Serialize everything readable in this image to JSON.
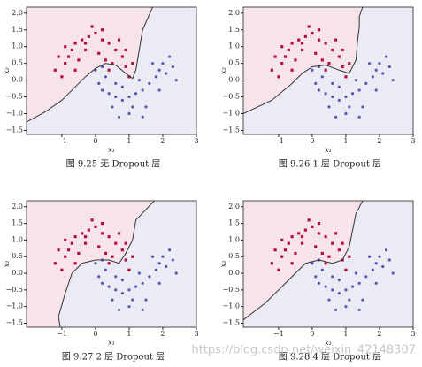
{
  "chart_data": [
    {
      "type": "scatter",
      "caption": "图 9.25 无 Dropout 层",
      "xlabel": "x₁",
      "ylabel": "x₂",
      "xlim": [
        -2.05,
        3
      ],
      "ylim": [
        -1.62,
        2.18
      ],
      "xticks": [
        {
          "value": -1,
          "label": "−1"
        },
        0,
        1,
        2,
        3
      ],
      "yticks": [
        {
          "value": -1.5,
          "label": "−1.5"
        },
        {
          "value": -1,
          "label": "−1.0"
        },
        {
          "value": -0.5,
          "label": "−0.5"
        },
        {
          "value": 0,
          "label": "0.0"
        },
        {
          "value": 0.5,
          "label": "0.5"
        },
        {
          "value": 1,
          "label": "1.0"
        },
        {
          "value": 1.5,
          "label": "1.5"
        },
        {
          "value": 2,
          "label": "2.0"
        }
      ],
      "region_colors": [
        "#f7e4ea",
        "#ebebf5"
      ],
      "boundary": {
        "color": "#333333",
        "x": [
          -2.05,
          -1.5,
          -1.0,
          -0.6,
          -0.3,
          0,
          0.3,
          0.6,
          0.9,
          1.1,
          1.2,
          1.3,
          1.4,
          1.7
        ],
        "values": [
          -1.25,
          -0.95,
          -0.6,
          -0.2,
          0.1,
          0.35,
          0.5,
          0.45,
          0.2,
          0.05,
          0.3,
          0.9,
          1.5,
          2.18
        ]
      },
      "series": [
        {
          "color": "#b0103a",
          "marker": "square",
          "x": [
            -1.0,
            -0.9,
            -0.8,
            -0.7,
            -0.6,
            -0.4,
            -0.2,
            0,
            0.2,
            0.4,
            0.6,
            0.8,
            0.9,
            1.0,
            -1.2,
            -0.5,
            -0.3,
            0.1,
            0.3,
            0.5,
            -0.1,
            -0.9,
            0.7,
            1.1,
            -0.6,
            0.2,
            -1.1,
            0.4,
            -0.3,
            0.9
          ],
          "values": [
            0.1,
            0.5,
            0.7,
            0.9,
            1.1,
            1.2,
            1.3,
            1.4,
            1.2,
            1.1,
            0.9,
            0.7,
            0.4,
            0.1,
            0.3,
            0.6,
            0.9,
            0.8,
            0.6,
            0.5,
            1.6,
            1.0,
            1.2,
            0.5,
            0.3,
            1.5,
            0.7,
            0.3,
            1.1,
            0.9
          ]
        },
        {
          "color": "#5b56b0",
          "marker": "circle",
          "x": [
            0,
            0.1,
            0.2,
            0.4,
            0.6,
            0.8,
            1.0,
            1.2,
            1.4,
            1.6,
            1.8,
            1.9,
            2.0,
            2.1,
            2.3,
            1.5,
            1.0,
            0.5,
            0.3,
            0.8,
            1.3,
            1.7,
            2.2,
            1.1,
            0.7,
            2.4,
            0.2,
            1.9,
            1.4,
            0.6
          ],
          "values": [
            0.3,
            -0.1,
            -0.3,
            -0.4,
            -0.5,
            -0.6,
            -0.5,
            -0.4,
            -0.3,
            -0.1,
            0.1,
            0.3,
            0.5,
            0.2,
            0.4,
            -0.8,
            -1.0,
            -0.8,
            0.1,
            -0.2,
            0,
            0.5,
            0.7,
            -0.8,
            -1.1,
            0,
            0.4,
            -0.3,
            -1.1,
            -0.1
          ]
        }
      ]
    },
    {
      "type": "scatter",
      "caption": "图 9.26 1 层 Dropout 层",
      "xlabel": "x₁",
      "ylabel": "x₂",
      "xlim": [
        -2.05,
        3
      ],
      "ylim": [
        -1.62,
        2.18
      ],
      "xticks": [
        {
          "value": -1,
          "label": "−1"
        },
        0,
        1,
        2,
        3
      ],
      "yticks": [
        {
          "value": -1.5,
          "label": "−1.5"
        },
        {
          "value": -1,
          "label": "−1.0"
        },
        {
          "value": -0.5,
          "label": "−0.5"
        },
        {
          "value": 0,
          "label": "0.0"
        },
        {
          "value": 0.5,
          "label": "0.5"
        },
        {
          "value": 1,
          "label": "1.0"
        },
        {
          "value": 1.5,
          "label": "1.5"
        },
        {
          "value": 2,
          "label": "2.0"
        }
      ],
      "region_colors": [
        "#f7e4ea",
        "#ebebf5"
      ],
      "boundary": {
        "color": "#333333",
        "x": [
          -2.05,
          -1.2,
          -0.6,
          -0.3,
          0,
          0.4,
          0.8,
          1.1,
          1.3,
          1.35,
          1.4,
          1.4,
          1.5
        ],
        "values": [
          -1.0,
          -0.6,
          -0.1,
          0.2,
          0.4,
          0.45,
          0.3,
          0.2,
          0.6,
          1.2,
          1.6,
          1.9,
          2.18
        ]
      },
      "series": [
        {
          "color": "#b0103a",
          "marker": "square",
          "x": [
            -1.0,
            -0.9,
            -0.8,
            -0.7,
            -0.6,
            -0.4,
            -0.2,
            0,
            0.2,
            0.4,
            0.6,
            0.8,
            0.9,
            1.0,
            -1.2,
            -0.5,
            -0.3,
            0.1,
            0.3,
            0.5,
            -0.1,
            -0.9,
            0.7,
            1.1,
            -0.6,
            0.2,
            -1.1,
            0.4,
            -0.3,
            0.9
          ],
          "values": [
            0.1,
            0.5,
            0.7,
            0.9,
            1.1,
            1.2,
            1.3,
            1.4,
            1.2,
            1.1,
            0.9,
            0.7,
            0.4,
            0.1,
            0.3,
            0.6,
            0.9,
            0.8,
            0.6,
            0.5,
            1.6,
            1.0,
            1.2,
            0.5,
            0.3,
            1.5,
            0.7,
            0.3,
            1.1,
            0.9
          ]
        },
        {
          "color": "#5b56b0",
          "marker": "circle",
          "x": [
            0,
            0.1,
            0.2,
            0.4,
            0.6,
            0.8,
            1.0,
            1.2,
            1.4,
            1.6,
            1.8,
            1.9,
            2.0,
            2.1,
            2.3,
            1.5,
            1.0,
            0.5,
            0.3,
            0.8,
            1.3,
            1.7,
            2.2,
            1.1,
            0.7,
            2.4,
            0.2,
            1.9,
            1.4,
            0.6
          ],
          "values": [
            0.3,
            -0.1,
            -0.3,
            -0.4,
            -0.5,
            -0.6,
            -0.5,
            -0.4,
            -0.3,
            -0.1,
            0.1,
            0.3,
            0.5,
            0.2,
            0.4,
            -0.8,
            -1.0,
            -0.8,
            0.1,
            -0.2,
            0,
            0.5,
            0.7,
            -0.8,
            -1.1,
            0,
            0.4,
            -0.3,
            -1.1,
            -0.1
          ]
        }
      ]
    },
    {
      "type": "scatter",
      "caption": "图 9.27 2 层 Dropout 层",
      "xlabel": "x₁",
      "ylabel": "x₂",
      "xlim": [
        -2.05,
        3
      ],
      "ylim": [
        -1.62,
        2.18
      ],
      "xticks": [
        {
          "value": -1,
          "label": "−1"
        },
        0,
        1,
        2,
        3
      ],
      "yticks": [
        {
          "value": -1.5,
          "label": "−1.5"
        },
        {
          "value": -1,
          "label": "−1.0"
        },
        {
          "value": -0.5,
          "label": "−0.5"
        },
        {
          "value": 0,
          "label": "0.0"
        },
        {
          "value": 0.5,
          "label": "0.5"
        },
        {
          "value": 1,
          "label": "1.0"
        },
        {
          "value": 1.5,
          "label": "1.5"
        },
        {
          "value": 2,
          "label": "2.0"
        }
      ],
      "region_colors": [
        "#f7e4ea",
        "#ebebf5"
      ],
      "boundary": {
        "color": "#333333",
        "x": [
          -1.05,
          -1.1,
          -0.9,
          -0.7,
          -0.4,
          0,
          0.4,
          0.7,
          0.9,
          1.1,
          1.2,
          1.75
        ],
        "values": [
          -1.62,
          -1.3,
          -0.6,
          0.0,
          0.3,
          0.4,
          0.4,
          0.3,
          0.6,
          1.0,
          1.6,
          2.18
        ]
      },
      "series": [
        {
          "color": "#b0103a",
          "marker": "square",
          "x": [
            -1.0,
            -0.9,
            -0.8,
            -0.7,
            -0.6,
            -0.4,
            -0.2,
            0,
            0.2,
            0.4,
            0.6,
            0.8,
            0.9,
            1.0,
            -1.2,
            -0.5,
            -0.3,
            0.1,
            0.3,
            0.5,
            -0.1,
            -0.9,
            0.7,
            1.1,
            -0.6,
            0.2,
            -1.1,
            0.4,
            -0.3,
            0.9
          ],
          "values": [
            0.1,
            0.5,
            0.7,
            0.9,
            1.1,
            1.2,
            1.3,
            1.4,
            1.2,
            1.1,
            0.9,
            0.7,
            0.4,
            0.1,
            0.3,
            0.6,
            0.9,
            0.8,
            0.6,
            0.5,
            1.6,
            1.0,
            1.2,
            0.5,
            0.3,
            1.5,
            0.7,
            0.3,
            1.1,
            0.9
          ]
        },
        {
          "color": "#5b56b0",
          "marker": "circle",
          "x": [
            0,
            0.1,
            0.2,
            0.4,
            0.6,
            0.8,
            1.0,
            1.2,
            1.4,
            1.6,
            1.8,
            1.9,
            2.0,
            2.1,
            2.3,
            1.5,
            1.0,
            0.5,
            0.3,
            0.8,
            1.3,
            1.7,
            2.2,
            1.1,
            0.7,
            2.4,
            0.2,
            1.9,
            1.4,
            0.6
          ],
          "values": [
            0.3,
            -0.1,
            -0.3,
            -0.4,
            -0.5,
            -0.6,
            -0.5,
            -0.4,
            -0.3,
            -0.1,
            0.1,
            0.3,
            0.5,
            0.2,
            0.4,
            -0.8,
            -1.0,
            -0.8,
            0.1,
            -0.2,
            0,
            0.5,
            0.7,
            -0.8,
            -1.1,
            0,
            0.4,
            -0.3,
            -1.1,
            -0.1
          ]
        }
      ]
    },
    {
      "type": "scatter",
      "caption": "图 9.28 4 层 Dropout 层",
      "xlabel": "x₁",
      "ylabel": "x₂",
      "xlim": [
        -2.05,
        3
      ],
      "ylim": [
        -1.62,
        2.18
      ],
      "xticks": [
        {
          "value": -1,
          "label": "−1"
        },
        0,
        1,
        2,
        3
      ],
      "yticks": [
        {
          "value": -1.5,
          "label": "−1.5"
        },
        {
          "value": -1,
          "label": "−1.0"
        },
        {
          "value": -0.5,
          "label": "−0.5"
        },
        {
          "value": 0,
          "label": "0.0"
        },
        {
          "value": 0.5,
          "label": "0.5"
        },
        {
          "value": 1,
          "label": "1.0"
        },
        {
          "value": 1.5,
          "label": "1.5"
        },
        {
          "value": 2,
          "label": "2.0"
        }
      ],
      "region_colors": [
        "#f7e4ea",
        "#ebebf5"
      ],
      "boundary": {
        "color": "#333333",
        "x": [
          -2.05,
          -1.4,
          -0.9,
          -0.5,
          -0.2,
          0.2,
          0.6,
          0.9,
          1.1,
          1.2,
          1.3,
          1.5
        ],
        "values": [
          -1.4,
          -0.9,
          -0.4,
          0.0,
          0.3,
          0.4,
          0.3,
          0.4,
          0.8,
          1.3,
          1.8,
          2.18
        ]
      },
      "series": [
        {
          "color": "#b0103a",
          "marker": "square",
          "x": [
            -1.0,
            -0.9,
            -0.8,
            -0.7,
            -0.6,
            -0.4,
            -0.2,
            0,
            0.2,
            0.4,
            0.6,
            0.8,
            0.9,
            1.0,
            -1.2,
            -0.5,
            -0.3,
            0.1,
            0.3,
            0.5,
            -0.1,
            -0.9,
            0.7,
            1.1,
            -0.6,
            0.2,
            -1.1,
            0.4,
            -0.3,
            0.9
          ],
          "values": [
            0.1,
            0.5,
            0.7,
            0.9,
            1.1,
            1.2,
            1.3,
            1.4,
            1.2,
            1.1,
            0.9,
            0.7,
            0.4,
            0.1,
            0.3,
            0.6,
            0.9,
            0.8,
            0.6,
            0.5,
            1.6,
            1.0,
            1.2,
            0.5,
            0.3,
            1.5,
            0.7,
            0.3,
            1.1,
            0.9
          ]
        },
        {
          "color": "#5b56b0",
          "marker": "circle",
          "x": [
            0,
            0.1,
            0.2,
            0.4,
            0.6,
            0.8,
            1.0,
            1.2,
            1.4,
            1.6,
            1.8,
            1.9,
            2.0,
            2.1,
            2.3,
            1.5,
            1.0,
            0.5,
            0.3,
            0.8,
            1.3,
            1.7,
            2.2,
            1.1,
            0.7,
            2.4,
            0.2,
            1.9,
            1.4,
            0.6
          ],
          "values": [
            0.3,
            -0.1,
            -0.3,
            -0.4,
            -0.5,
            -0.6,
            -0.5,
            -0.4,
            -0.3,
            -0.1,
            0.1,
            0.3,
            0.5,
            0.2,
            0.4,
            -0.8,
            -1.0,
            -0.8,
            0.1,
            -0.2,
            0,
            0.5,
            0.7,
            -0.8,
            -1.1,
            0,
            0.4,
            -0.3,
            -1.1,
            -0.1
          ]
        }
      ]
    }
  ],
  "watermark": "https://blog.csdn.net/weixin_42148307"
}
